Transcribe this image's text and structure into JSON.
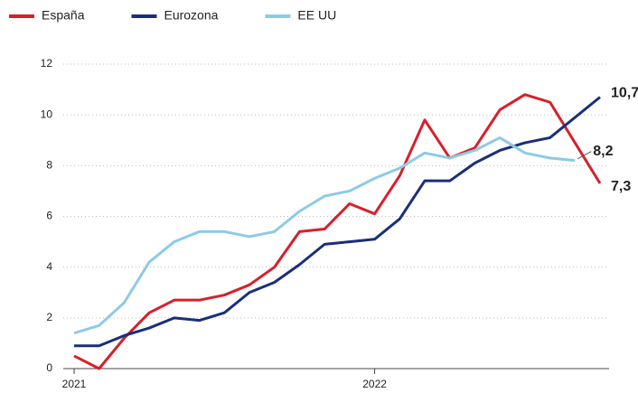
{
  "chart_data": {
    "type": "line",
    "categories": [
      "2021",
      null,
      null,
      null,
      null,
      null,
      null,
      null,
      null,
      null,
      null,
      null,
      "2022",
      null,
      null,
      null,
      null,
      null,
      null,
      null,
      null,
      null
    ],
    "series": [
      {
        "name": "España",
        "color": "#d7202a",
        "values": [
          0.5,
          0,
          1.2,
          2.2,
          2.7,
          2.7,
          2.9,
          3.3,
          4.0,
          5.4,
          5.5,
          6.5,
          6.1,
          7.6,
          9.8,
          8.3,
          8.7,
          10.2,
          10.8,
          10.5,
          8.9,
          7.3
        ],
        "value_labels": [
          null,
          null,
          null,
          null,
          null,
          null,
          null,
          null,
          null,
          null,
          null,
          null,
          null,
          null,
          null,
          null,
          null,
          null,
          null,
          null,
          null,
          "7,3"
        ]
      },
      {
        "name": "Eurozona",
        "color": "#1a2f7a",
        "values": [
          0.9,
          0.9,
          1.3,
          1.6,
          2.0,
          1.9,
          2.2,
          3.0,
          3.4,
          4.1,
          4.9,
          5.0,
          5.1,
          5.9,
          7.4,
          7.4,
          8.1,
          8.6,
          8.9,
          9.1,
          9.9,
          10.7
        ],
        "value_labels": [
          null,
          null,
          null,
          null,
          null,
          null,
          null,
          null,
          null,
          null,
          null,
          null,
          null,
          null,
          null,
          null,
          null,
          null,
          null,
          null,
          null,
          "10,7"
        ]
      },
      {
        "name": "EE UU",
        "color": "#8ecae6",
        "values": [
          1.4,
          1.7,
          2.6,
          4.2,
          5.0,
          5.4,
          5.4,
          5.2,
          5.4,
          6.2,
          6.8,
          7.0,
          7.5,
          7.9,
          8.5,
          8.3,
          8.6,
          9.1,
          8.5,
          8.3,
          8.2,
          null
        ],
        "value_labels": [
          null,
          null,
          null,
          null,
          null,
          null,
          null,
          null,
          null,
          null,
          null,
          null,
          null,
          null,
          null,
          null,
          null,
          null,
          null,
          null,
          "8,2",
          null
        ]
      }
    ],
    "ylim": [
      0,
      12
    ],
    "yticks": [
      0,
      2,
      4,
      6,
      8,
      10,
      12
    ],
    "grid": true,
    "legend": "top-left"
  }
}
